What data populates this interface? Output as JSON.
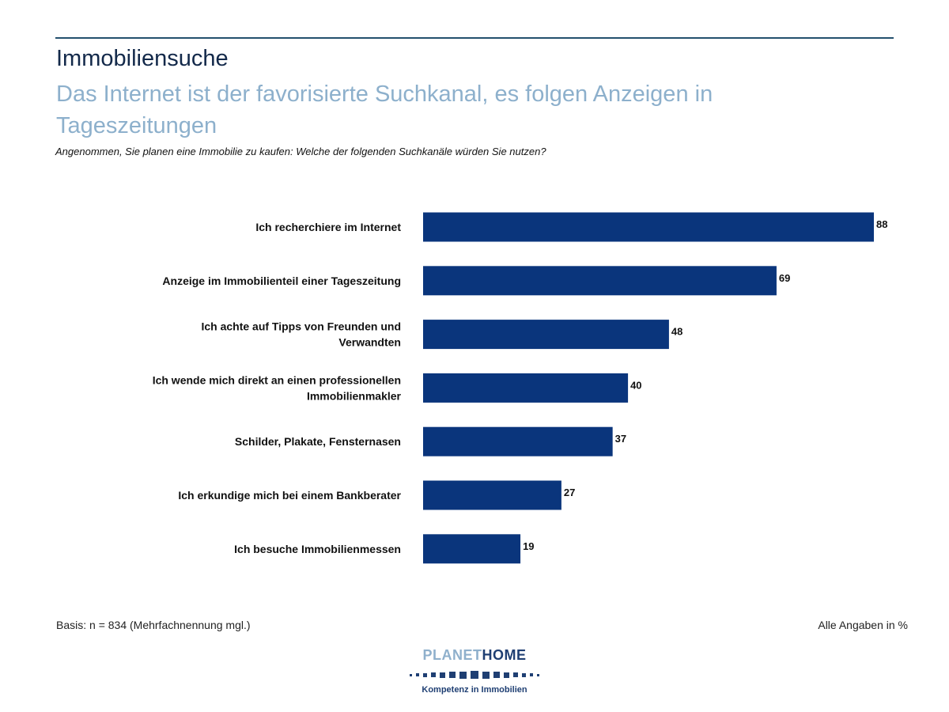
{
  "header": {
    "title": "Immobiliensuche",
    "subtitle": "Das Internet ist der favorisierte Suchkanal, es folgen Anzeigen in Tageszeitungen",
    "question": "Angenommen, Sie planen eine Immobilie zu kaufen: Welche der folgenden Suchkanäle würden Sie nutzen?"
  },
  "chart_data": {
    "type": "bar",
    "orientation": "horizontal",
    "categories": [
      [
        "Ich recherchiere im Internet"
      ],
      [
        "Anzeige im Immobilienteil einer Tageszeitung"
      ],
      [
        "Ich achte auf Tipps von Freunden und",
        "Verwandten"
      ],
      [
        "Ich wende mich direkt an einen professionellen",
        "Immobilienmakler"
      ],
      [
        "Schilder, Plakate, Fensternasen"
      ],
      [
        "Ich erkundige mich bei einem Bankberater"
      ],
      [
        "Ich besuche Immobilienmessen"
      ]
    ],
    "values": [
      88,
      69,
      48,
      40,
      37,
      27,
      19
    ],
    "color": "#0a357c",
    "xlim": [
      0,
      88
    ],
    "grid": false
  },
  "footer": {
    "basis": "Basis: n = 834 (Mehrfachnennung mgl.)",
    "unit_note": "Alle Angaben in %"
  },
  "logo": {
    "name_a": "PLANET",
    "name_b": "HOME",
    "tagline": "Kompetenz in Immobilien"
  }
}
